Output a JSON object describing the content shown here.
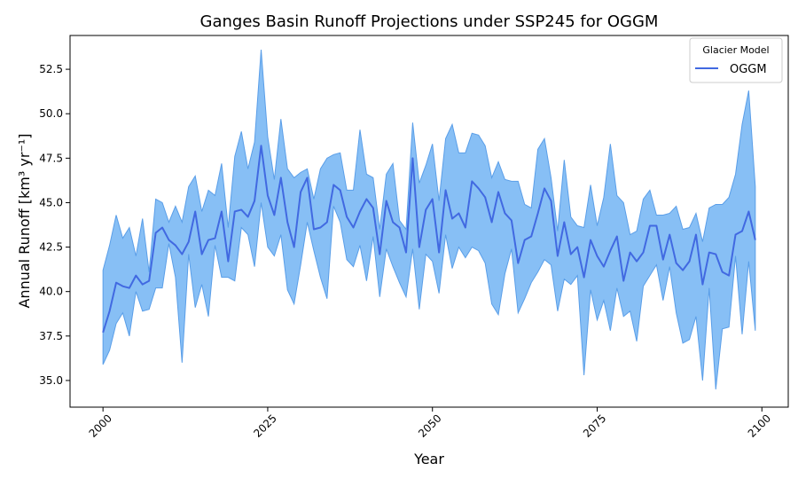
{
  "chart_data": {
    "type": "line",
    "title": "Ganges Basin Runoff Projections under SSP245 for OGGM",
    "xlabel": "Year",
    "ylabel": "Annual Runoff [km³ yr⁻¹]",
    "xlim": [
      1995,
      2104
    ],
    "ylim": [
      33.5,
      54.4
    ],
    "x_ticks": [
      2000,
      2025,
      2050,
      2075,
      2100
    ],
    "y_ticks": [
      35.0,
      37.5,
      40.0,
      42.5,
      45.0,
      47.5,
      50.0,
      52.5
    ],
    "grid": false,
    "legend": {
      "title": "Glacier Model",
      "placement": "top-right"
    },
    "colors": {
      "line": "#4169e1",
      "band": "#87bff5",
      "band_edge": "#5a9ee8"
    },
    "x_start": 2000,
    "series": [
      {
        "name": "OGGM",
        "mean": [
          37.7,
          38.9,
          40.5,
          40.3,
          40.2,
          40.9,
          40.4,
          40.6,
          43.3,
          43.6,
          42.9,
          42.6,
          42.1,
          42.8,
          44.5,
          42.1,
          42.9,
          43.0,
          44.5,
          41.7,
          44.5,
          44.6,
          44.2,
          45.1,
          48.2,
          45.4,
          44.3,
          46.4,
          43.9,
          42.5,
          45.6,
          46.4,
          43.5,
          43.6,
          43.9,
          46.0,
          45.7,
          44.2,
          43.6,
          44.5,
          45.2,
          44.7,
          42.1,
          45.1,
          43.9,
          43.6,
          42.2,
          47.5,
          42.5,
          44.6,
          45.2,
          42.2,
          45.7,
          44.1,
          44.4,
          43.6,
          46.2,
          45.8,
          45.3,
          43.9,
          45.6,
          44.4,
          44.0,
          41.6,
          42.9,
          43.1,
          44.4,
          45.8,
          45.1,
          42.0,
          43.9,
          42.1,
          42.5,
          40.8,
          42.9,
          42.0,
          41.4,
          42.3,
          43.1,
          40.6,
          42.2,
          41.7,
          42.2,
          43.7,
          43.7,
          41.8,
          43.2,
          41.6,
          41.2,
          41.7,
          43.2,
          40.4,
          42.2,
          42.1,
          41.1,
          40.9,
          43.2,
          43.4,
          44.5,
          42.9
        ],
        "upper": [
          41.2,
          42.6,
          44.3,
          43.0,
          43.6,
          42.0,
          44.1,
          41.1,
          45.2,
          45.0,
          43.9,
          44.8,
          43.9,
          45.9,
          46.5,
          44.5,
          45.7,
          45.4,
          47.2,
          43.6,
          47.6,
          49.0,
          46.9,
          48.4,
          53.6,
          48.7,
          46.3,
          49.7,
          46.9,
          46.4,
          46.7,
          46.9,
          45.2,
          46.9,
          47.5,
          47.7,
          47.8,
          45.7,
          45.7,
          49.1,
          46.6,
          46.4,
          43.5,
          46.6,
          47.2,
          44.0,
          43.5,
          49.5,
          46.1,
          47.1,
          48.3,
          45.1,
          48.6,
          49.4,
          47.8,
          47.8,
          48.9,
          48.8,
          48.2,
          46.4,
          47.3,
          46.3,
          46.2,
          46.2,
          44.9,
          44.7,
          48.0,
          48.6,
          46.4,
          43.4,
          47.4,
          44.2,
          43.7,
          43.6,
          46.0,
          43.7,
          45.3,
          48.3,
          45.4,
          45.0,
          43.2,
          43.4,
          45.2,
          45.7,
          44.3,
          44.3,
          44.4,
          44.8,
          43.5,
          43.6,
          44.4,
          42.8,
          44.7,
          44.9,
          44.9,
          45.3,
          46.6,
          49.4,
          51.3,
          45.9
        ],
        "lower": [
          35.9,
          36.7,
          38.2,
          38.8,
          37.5,
          40.0,
          38.9,
          39.0,
          40.2,
          40.2,
          42.7,
          40.8,
          36.0,
          42.1,
          39.1,
          40.4,
          38.6,
          42.6,
          40.8,
          40.8,
          40.6,
          43.6,
          43.2,
          41.4,
          45.0,
          42.5,
          42.0,
          43.2,
          40.1,
          39.3,
          41.5,
          43.9,
          42.3,
          40.8,
          39.6,
          44.8,
          43.9,
          41.8,
          41.4,
          42.6,
          40.6,
          43.1,
          39.7,
          42.4,
          41.4,
          40.5,
          39.7,
          42.4,
          39.0,
          42.1,
          41.7,
          39.9,
          43.2,
          41.3,
          42.5,
          41.9,
          42.5,
          42.3,
          41.6,
          39.3,
          38.7,
          41.0,
          42.4,
          38.8,
          39.6,
          40.5,
          41.1,
          41.8,
          41.5,
          38.9,
          40.7,
          40.4,
          40.9,
          35.3,
          40.1,
          38.4,
          39.5,
          37.8,
          40.2,
          38.6,
          38.9,
          37.2,
          40.3,
          40.9,
          41.5,
          39.5,
          41.4,
          38.8,
          37.1,
          37.3,
          38.6,
          35.0,
          40.2,
          34.5,
          37.9,
          38.0,
          42.0,
          37.6,
          41.7,
          37.8
        ]
      }
    ]
  }
}
